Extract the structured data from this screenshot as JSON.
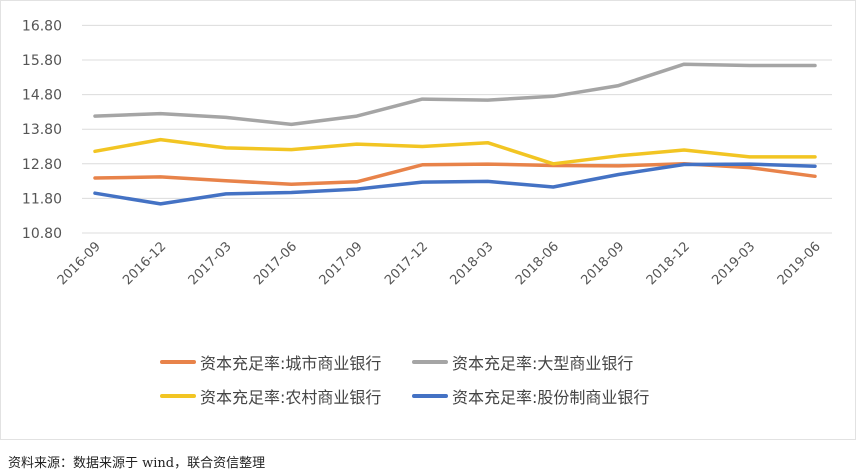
{
  "chart_data": {
    "type": "line",
    "title": "",
    "xlabel": "",
    "ylabel": "",
    "ylim": [
      10.8,
      16.8
    ],
    "yticks": [
      "16.80",
      "15.80",
      "14.80",
      "13.80",
      "12.80",
      "11.80",
      "10.80"
    ],
    "ytick_values": [
      16.8,
      15.8,
      14.8,
      13.8,
      12.8,
      11.8,
      10.8
    ],
    "grid": true,
    "legend_position": "bottom",
    "categories": [
      "2016-09",
      "2016-12",
      "2017-03",
      "2017-06",
      "2017-09",
      "2017-12",
      "2018-03",
      "2018-06",
      "2018-09",
      "2018-12",
      "2019-03",
      "2019-06"
    ],
    "series": [
      {
        "name": "资本充足率:城市商业银行",
        "color": "#E8834A",
        "values": [
          12.39,
          12.42,
          12.31,
          12.21,
          12.28,
          12.77,
          12.79,
          12.75,
          12.74,
          12.8,
          12.69,
          12.44
        ]
      },
      {
        "name": "资本充足率:大型商业银行",
        "color": "#A5A5A5",
        "values": [
          14.18,
          14.25,
          14.14,
          13.94,
          14.18,
          14.67,
          14.64,
          14.75,
          15.06,
          15.68,
          15.64,
          15.64
        ]
      },
      {
        "name": "资本充足率:农村商业银行",
        "color": "#F2C523",
        "values": [
          13.16,
          13.5,
          13.26,
          13.21,
          13.37,
          13.3,
          13.41,
          12.8,
          13.03,
          13.2,
          13.0,
          13.0
        ]
      },
      {
        "name": "资本充足率:股份制商业银行",
        "color": "#4472C4",
        "values": [
          11.95,
          11.64,
          11.93,
          11.97,
          12.07,
          12.27,
          12.29,
          12.13,
          12.49,
          12.78,
          12.79,
          12.73
        ]
      }
    ]
  },
  "source_note": "资料来源：数据来源于 wind，联合资信整理"
}
